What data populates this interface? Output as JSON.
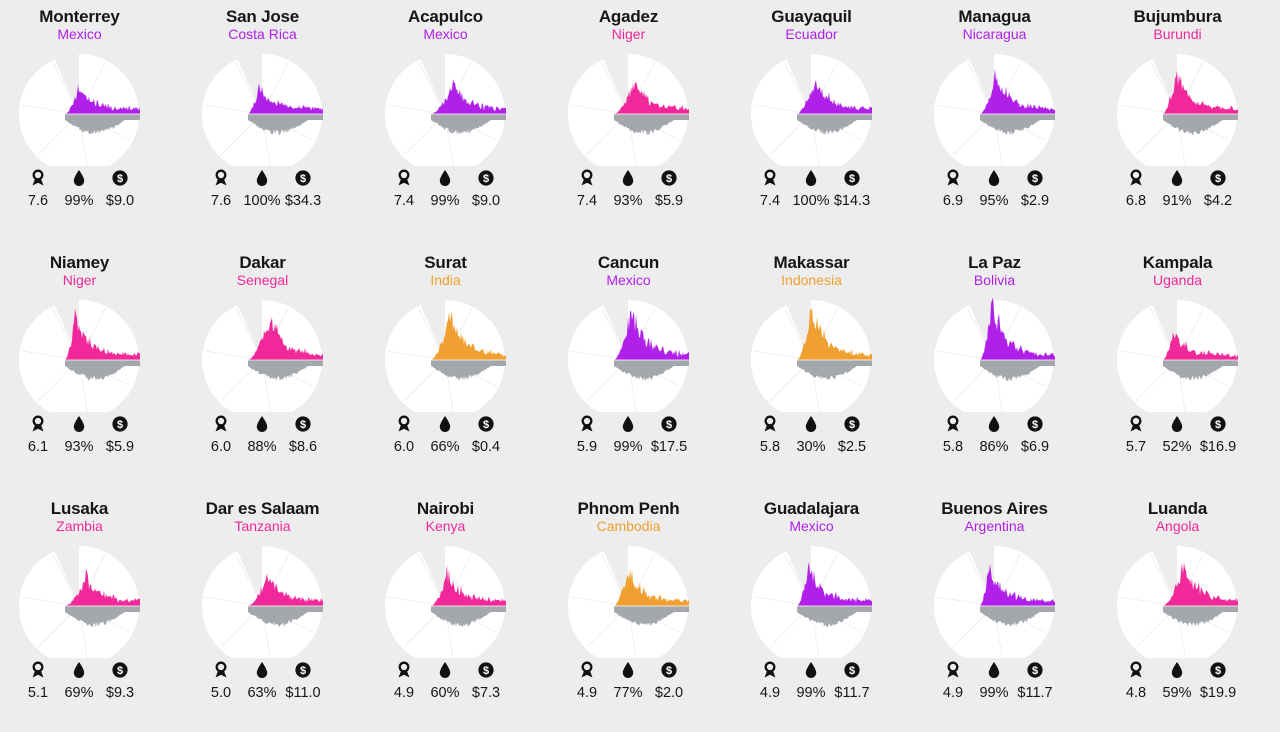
{
  "colors": {
    "purple": "#b020e8",
    "pink": "#f0289a",
    "orange": "#f0a030",
    "gray": "#a4a8ad",
    "background": "#ededee"
  },
  "icons": [
    "location-pin-icon",
    "water-drop-icon",
    "dollar-coin-icon"
  ],
  "chart_data": [
    {
      "type": "area",
      "city": "Monterrey",
      "country": "Mexico",
      "color": "purple",
      "stats": [
        "7.6",
        "99%",
        "$9.0"
      ]
    },
    {
      "type": "area",
      "city": "San Jose",
      "country": "Costa Rica",
      "color": "purple",
      "stats": [
        "7.6",
        "100%",
        "$34.3"
      ]
    },
    {
      "type": "area",
      "city": "Acapulco",
      "country": "Mexico",
      "color": "purple",
      "stats": [
        "7.4",
        "99%",
        "$9.0"
      ]
    },
    {
      "type": "area",
      "city": "Agadez",
      "country": "Niger",
      "color": "pink",
      "stats": [
        "7.4",
        "93%",
        "$5.9"
      ]
    },
    {
      "type": "area",
      "city": "Guayaquil",
      "country": "Ecuador",
      "color": "purple",
      "stats": [
        "7.4",
        "100%",
        "$14.3"
      ]
    },
    {
      "type": "area",
      "city": "Managua",
      "country": "Nicaragua",
      "color": "purple",
      "stats": [
        "6.9",
        "95%",
        "$2.9"
      ]
    },
    {
      "type": "area",
      "city": "Bujumbura",
      "country": "Burundi",
      "color": "pink",
      "stats": [
        "6.8",
        "91%",
        "$4.2"
      ]
    },
    {
      "type": "area",
      "city": "Niamey",
      "country": "Niger",
      "color": "pink",
      "stats": [
        "6.1",
        "93%",
        "$5.9"
      ]
    },
    {
      "type": "area",
      "city": "Dakar",
      "country": "Senegal",
      "color": "pink",
      "stats": [
        "6.0",
        "88%",
        "$8.6"
      ]
    },
    {
      "type": "area",
      "city": "Surat",
      "country": "India",
      "color": "orange",
      "stats": [
        "6.0",
        "66%",
        "$0.4"
      ]
    },
    {
      "type": "area",
      "city": "Cancun",
      "country": "Mexico",
      "color": "purple",
      "stats": [
        "5.9",
        "99%",
        "$17.5"
      ]
    },
    {
      "type": "area",
      "city": "Makassar",
      "country": "Indonesia",
      "color": "orange",
      "stats": [
        "5.8",
        "30%",
        "$2.5"
      ]
    },
    {
      "type": "area",
      "city": "La Paz",
      "country": "Bolivia",
      "color": "purple",
      "stats": [
        "5.8",
        "86%",
        "$6.9"
      ]
    },
    {
      "type": "area",
      "city": "Kampala",
      "country": "Uganda",
      "color": "pink",
      "stats": [
        "5.7",
        "52%",
        "$16.9"
      ]
    },
    {
      "type": "area",
      "city": "Lusaka",
      "country": "Zambia",
      "color": "pink",
      "stats": [
        "5.1",
        "69%",
        "$9.3"
      ]
    },
    {
      "type": "area",
      "city": "Dar es Salaam",
      "country": "Tanzania",
      "color": "pink",
      "stats": [
        "5.0",
        "63%",
        "$11.0"
      ]
    },
    {
      "type": "area",
      "city": "Nairobi",
      "country": "Kenya",
      "color": "pink",
      "stats": [
        "4.9",
        "60%",
        "$7.3"
      ]
    },
    {
      "type": "area",
      "city": "Phnom Penh",
      "country": "Cambodia",
      "color": "orange",
      "stats": [
        "4.9",
        "77%",
        "$2.0"
      ]
    },
    {
      "type": "area",
      "city": "Guadalajara",
      "country": "Mexico",
      "color": "purple",
      "stats": [
        "4.9",
        "99%",
        "$11.7"
      ]
    },
    {
      "type": "area",
      "city": "Buenos Aires",
      "country": "Argentina",
      "color": "purple",
      "stats": [
        "4.9",
        "99%",
        "$11.7"
      ]
    },
    {
      "type": "area",
      "city": "Luanda",
      "country": "Angola",
      "color": "pink",
      "stats": [
        "4.8",
        "59%",
        "$19.9"
      ]
    }
  ]
}
